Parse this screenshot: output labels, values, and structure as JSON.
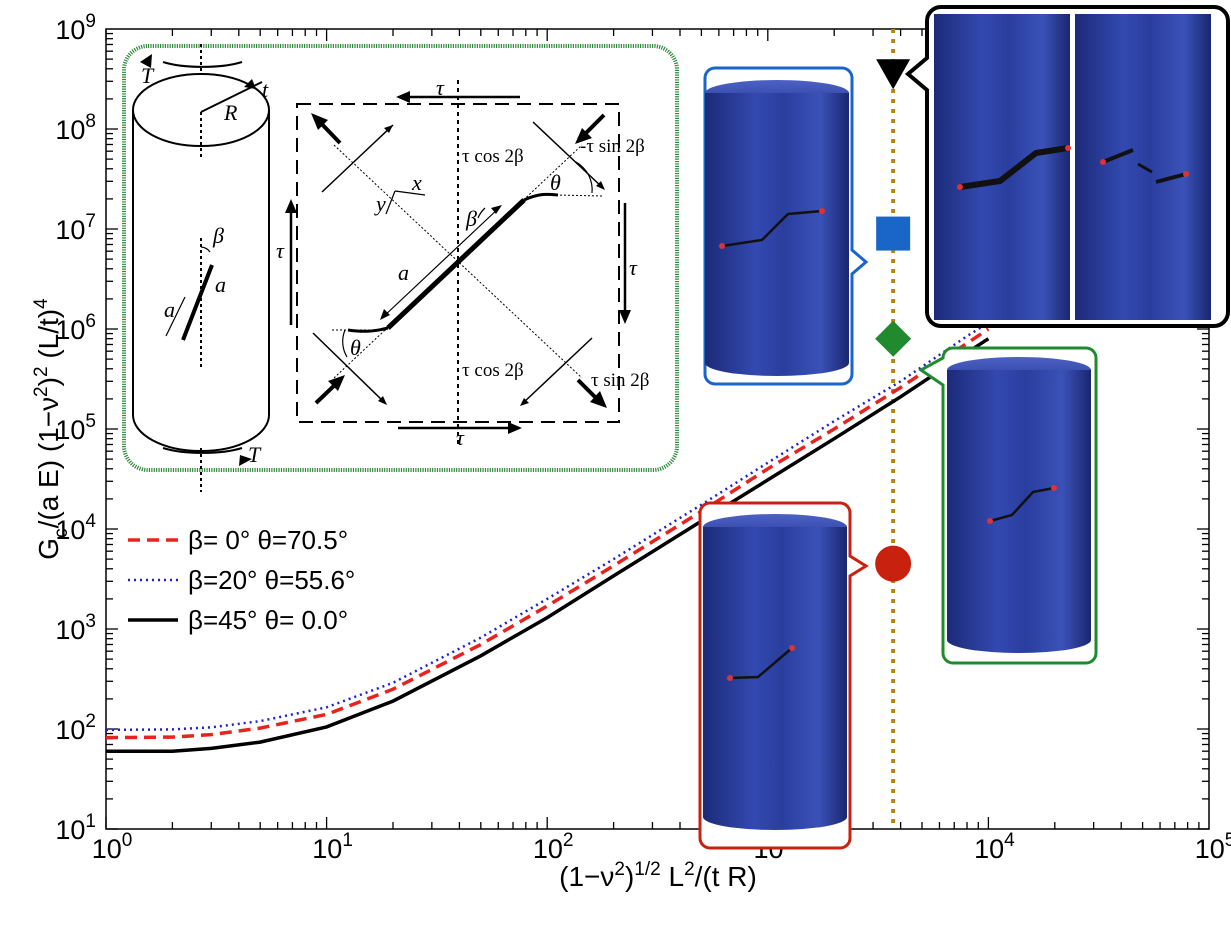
{
  "chart_data": {
    "type": "line",
    "x_scale": "log",
    "y_scale": "log",
    "xlim": [
      1,
      100000
    ],
    "ylim": [
      10,
      1000000000
    ],
    "xlabel": "(1−ν²)^1/2 L²/(t R)",
    "ylabel": "G_c/(a E) (1−ν²)² (L/t)⁴",
    "x_ticks": [
      1,
      10,
      100,
      1000,
      10000,
      100000
    ],
    "x_tick_exponents": [
      "0",
      "1",
      "2",
      "3",
      "4",
      "5"
    ],
    "y_ticks": [
      10,
      100,
      1000,
      10000,
      100000,
      1000000,
      10000000,
      100000000,
      1000000000
    ],
    "y_tick_exponents": [
      "1",
      "2",
      "3",
      "4",
      "5",
      "6",
      "7",
      "8",
      "9"
    ],
    "tick_base": "10",
    "grid": false,
    "legend_position": "center-left",
    "series": [
      {
        "name": "β= 0°  θ=70.5°",
        "color": "#e8231d",
        "style": "dashed",
        "points": [
          [
            1,
            82
          ],
          [
            2,
            83
          ],
          [
            3,
            88
          ],
          [
            5,
            102
          ],
          [
            10,
            140
          ],
          [
            20,
            250
          ],
          [
            50,
            700
          ],
          [
            100,
            1700
          ],
          [
            200,
            4300
          ],
          [
            500,
            15000
          ],
          [
            1000,
            40000
          ],
          [
            2000,
            100000
          ],
          [
            4000,
            260000
          ],
          [
            8000,
            720000
          ],
          [
            10000,
            1000000
          ]
        ]
      },
      {
        "name": "β=20°  θ=55.6°",
        "color": "#1f1fd0",
        "style": "dotted",
        "points": [
          [
            1,
            98
          ],
          [
            2,
            99
          ],
          [
            3,
            104
          ],
          [
            5,
            120
          ],
          [
            10,
            165
          ],
          [
            20,
            290
          ],
          [
            50,
            820
          ],
          [
            100,
            2000
          ],
          [
            200,
            5000
          ],
          [
            500,
            17500
          ],
          [
            1000,
            46000
          ],
          [
            2000,
            120000
          ],
          [
            4000,
            300000
          ],
          [
            8000,
            850000
          ],
          [
            10000,
            1150000
          ]
        ]
      },
      {
        "name": "β=45°  θ= 0.0°",
        "color": "#000000",
        "style": "solid",
        "points": [
          [
            1,
            60
          ],
          [
            2,
            60
          ],
          [
            3,
            64
          ],
          [
            5,
            74
          ],
          [
            10,
            105
          ],
          [
            20,
            190
          ],
          [
            50,
            540
          ],
          [
            100,
            1300
          ],
          [
            200,
            3400
          ],
          [
            500,
            12000
          ],
          [
            1000,
            31000
          ],
          [
            2000,
            80000
          ],
          [
            4000,
            210000
          ],
          [
            8000,
            580000
          ],
          [
            10000,
            800000
          ]
        ]
      }
    ],
    "vertical_line": {
      "x": 3700,
      "color": "#b8860b",
      "style": "dotted"
    },
    "markers": [
      {
        "shape": "triangle-down",
        "x": 3700,
        "y": 300000000,
        "color": "#000000"
      },
      {
        "shape": "square",
        "x": 3700,
        "y": 9000000,
        "color": "#1a66c8"
      },
      {
        "shape": "diamond",
        "x": 3700,
        "y": 800000,
        "color": "#1f8a2e"
      },
      {
        "shape": "circle",
        "x": 3700,
        "y": 4500,
        "color": "#c8220e"
      }
    ]
  },
  "inset": {
    "border_color": "#2e8b3a",
    "labels": {
      "T_top": "T",
      "t": "t",
      "R": "R",
      "beta_cyl": "β",
      "a_cyl": "a",
      "a_cyl2": "a",
      "T_bottom": "T",
      "tau_top": "τ",
      "tau_bottom": "τ",
      "tau_left": "τ",
      "tau_right": "τ",
      "tau_cos_top": "τ cos 2β",
      "tau_sin_top": "-τ sin 2β",
      "tau_cos_bottom": "τ cos 2β",
      "tau_sin_bottom": "τ sin 2β",
      "theta_top": "θ",
      "theta_bottom": "θ",
      "beta_sq": "β",
      "a_sq": "a",
      "x_axis": "x",
      "y_axis": "y"
    }
  },
  "callout_colors": {
    "black": "#000000",
    "blue": "#1a66c8",
    "green": "#1f8a2e",
    "red": "#c8220e"
  }
}
